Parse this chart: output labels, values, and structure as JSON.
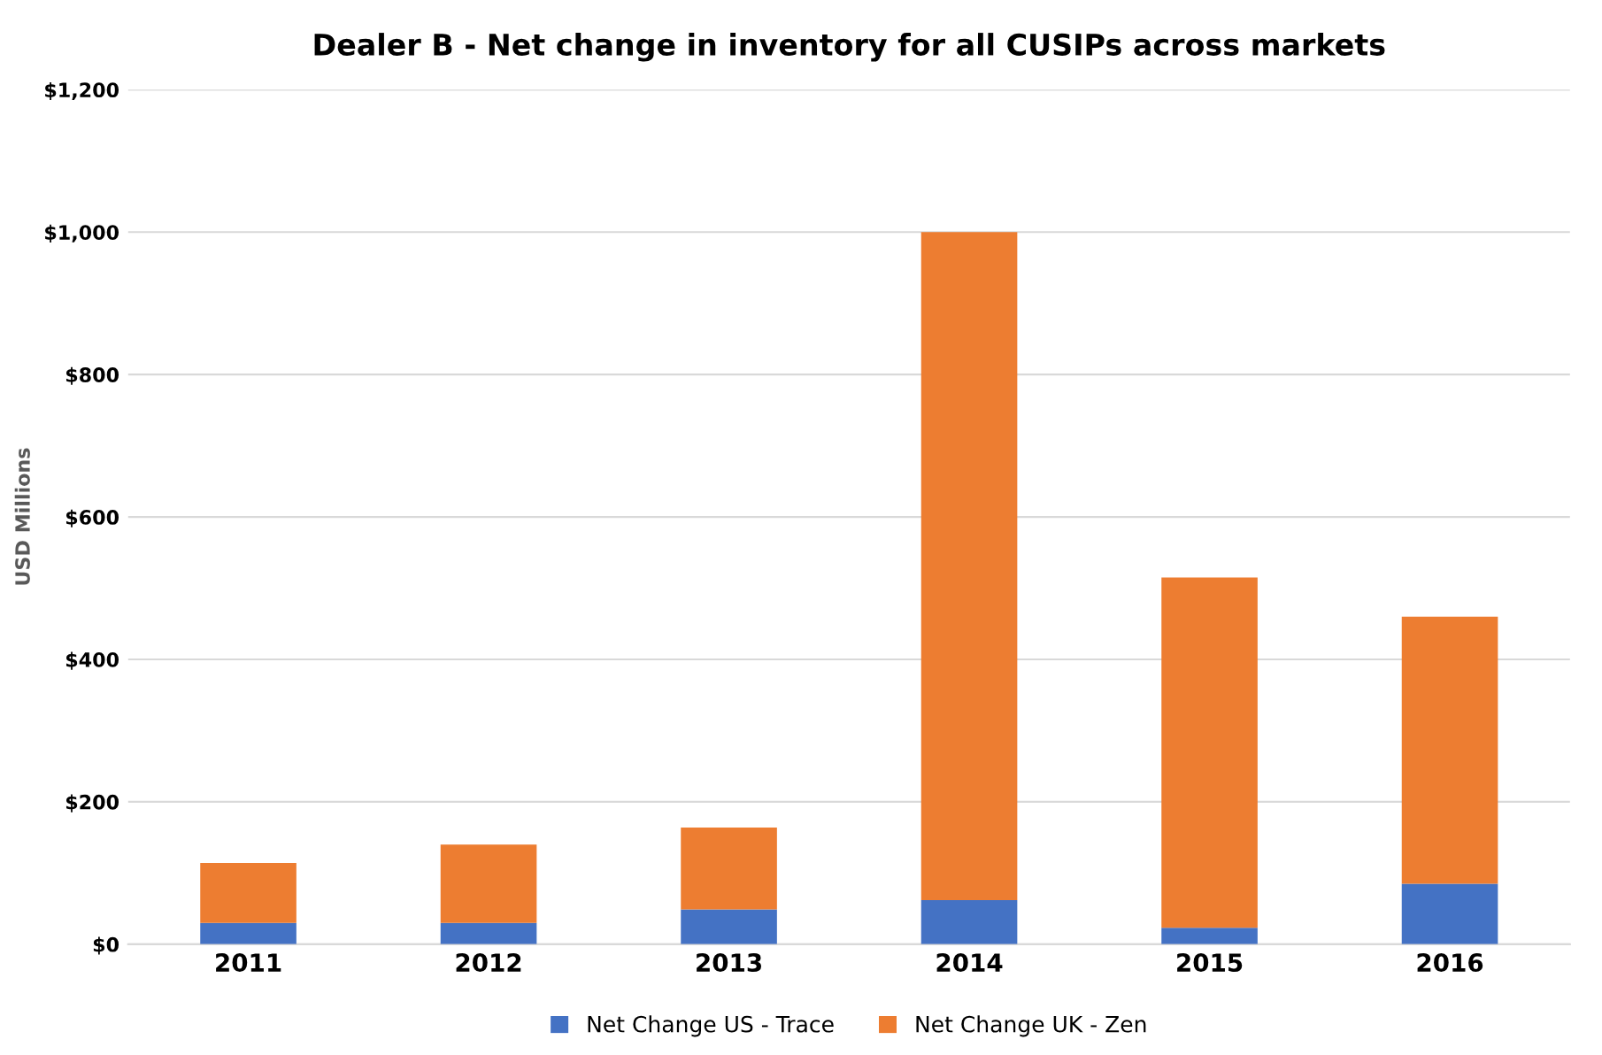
{
  "chart_data": {
    "type": "bar",
    "title": "Dealer B - Net change in inventory for all CUSIPs across markets",
    "ylabel": "USD Millions",
    "categories": [
      "2011",
      "2012",
      "2013",
      "2014",
      "2015",
      "2016"
    ],
    "stacked": true,
    "series": [
      {
        "name": "Net Change US - Trace",
        "color": "#4472c4",
        "values": [
          30,
          30,
          49,
          62,
          23,
          85
        ]
      },
      {
        "name": "Net Change UK - Zen",
        "color": "#ed7d31",
        "values": [
          84,
          110,
          115,
          938,
          492,
          375
        ]
      }
    ],
    "ylim": [
      0,
      1200
    ],
    "yticks": [
      {
        "value": 0,
        "label": "$0"
      },
      {
        "value": 200,
        "label": "$200"
      },
      {
        "value": 400,
        "label": "$400"
      },
      {
        "value": 600,
        "label": "$600"
      },
      {
        "value": 800,
        "label": "$800"
      },
      {
        "value": 1000,
        "label": "$1,000"
      },
      {
        "value": 1200,
        "label": "$1,200"
      }
    ],
    "grid": "y",
    "legend": "bottom"
  }
}
